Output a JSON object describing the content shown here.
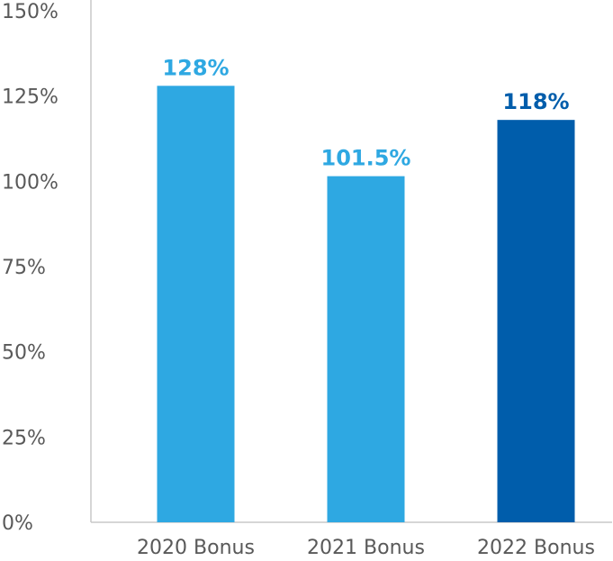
{
  "chart_data": {
    "type": "bar",
    "categories": [
      "2020 Bonus",
      "2021 Bonus",
      "2022 Bonus"
    ],
    "values": [
      128,
      101.5,
      118
    ],
    "data_labels": [
      "128%",
      "101.5%",
      "118%"
    ],
    "bar_colors": [
      "#2ea8e2",
      "#2ea8e2",
      "#005dab"
    ],
    "label_colors": [
      "#2ea8e2",
      "#2ea8e2",
      "#005dab"
    ],
    "ylim": [
      0,
      150
    ],
    "yticks": [
      0,
      25,
      50,
      75,
      100,
      125,
      150
    ],
    "ytick_labels": [
      "0%",
      "25%",
      "50%",
      "75%",
      "100%",
      "125%",
      "150%"
    ],
    "grid": false,
    "legend": "none",
    "title": "",
    "xlabel": "",
    "ylabel": ""
  }
}
